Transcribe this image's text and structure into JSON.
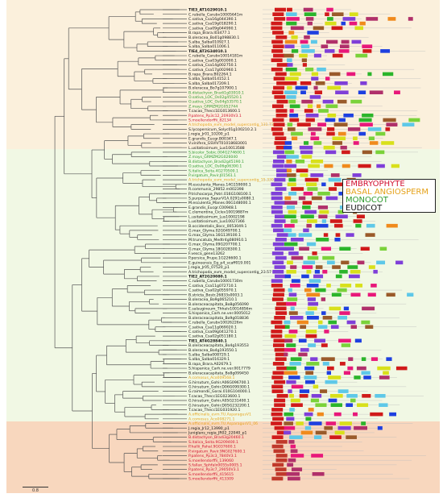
{
  "legend": [
    {
      "label": "EMBRYOPHYTE",
      "color": "#d11030"
    },
    {
      "label": "BASAL ANGIOSPERM",
      "color": "#e5a21a"
    },
    {
      "label": "MONOCOT",
      "color": "#2d9a2d"
    },
    {
      "label": "EUDICOT",
      "color": "#111111"
    }
  ],
  "scale_label": "0.8",
  "clades": [
    {
      "name": "upper",
      "color": "#fbf0dc"
    },
    {
      "name": "middle",
      "color": "#f1f8e4"
    },
    {
      "name": "lower",
      "color": "#f8d7be"
    }
  ],
  "domain_colors": [
    "#d01a1a",
    "#e8187a",
    "#7f3fd8",
    "#1e40e0",
    "#2bb52b",
    "#7ad23a",
    "#f08a1c",
    "#d8e01a",
    "#5ec8e8",
    "#b0306a",
    "#9a5a2a"
  ],
  "leaves": [
    {
      "label": "TIE3_AT1G29010.1",
      "color": "#111111",
      "bold": true
    },
    {
      "label": "C.rubella_Carubv10005641m",
      "color": "#111111"
    },
    {
      "label": "C.sativa_Csa16g044390.1",
      "color": "#111111"
    },
    {
      "label": "C.sativa_Csa19g018290.1",
      "color": "#111111"
    },
    {
      "label": "C.sativa_Csa09g044990.1",
      "color": "#111111"
    },
    {
      "label": "B.rapa_Brara.I03477.1",
      "color": "#111111"
    },
    {
      "label": "B.oleracea_Bo01g098830.1",
      "color": "#111111"
    },
    {
      "label": "S.alba_Salba010927.1",
      "color": "#111111"
    },
    {
      "label": "S.alba_Salba011006.1",
      "color": "#111111"
    },
    {
      "label": "TIE4_AT2G34010.1",
      "color": "#111111",
      "bold": true
    },
    {
      "label": "C.rubella_Carubv10014181m",
      "color": "#111111"
    },
    {
      "label": "C.sativa_Csa03g003000.1",
      "color": "#111111"
    },
    {
      "label": "C.sativa_Csa14g002750.1",
      "color": "#111111"
    },
    {
      "label": "C.sativa_Csa17g002960.1",
      "color": "#111111"
    },
    {
      "label": "B.rapa_Brara.B02264.1",
      "color": "#111111"
    },
    {
      "label": "S.alba_Salba014152.1",
      "color": "#111111"
    },
    {
      "label": "S.alba_Salba017209.1",
      "color": "#111111"
    },
    {
      "label": "B.oleracea_Bo7g107900.1",
      "color": "#111111"
    },
    {
      "label": "B.distachyon_Bradi1g03910.1",
      "color": "#2d9a2d"
    },
    {
      "label": "O.sativa_LOC_Os02g45520.1",
      "color": "#2d9a2d"
    },
    {
      "label": "O.sativa_LOC_Os04g53570.1",
      "color": "#2d9a2d"
    },
    {
      "label": "Z.mays_GRMZM2G052744",
      "color": "#2d9a2d"
    },
    {
      "label": "T.cacao_Thecc1EG013600.1",
      "color": "#111111"
    },
    {
      "label": "P.patens_Pp3c12_20930V3.1",
      "color": "#d11030"
    },
    {
      "label": "S.moellendorffii_82134",
      "color": "#d11030"
    },
    {
      "label": "A.trichopoda_evm_model_supercontig_131.73",
      "color": "#e5a21a"
    },
    {
      "label": "S.lycopersicum_Solyc01g100210.2.1",
      "color": "#111111"
    },
    {
      "label": "J.regia_Jr01_10200_p1",
      "color": "#111111"
    },
    {
      "label": "E.grandis_Eucgr.B00347.1",
      "color": "#111111"
    },
    {
      "label": "V.vinifera_GSVIVT01018683001",
      "color": "#111111"
    },
    {
      "label": "L.usitatissimum_Lus10013588",
      "color": "#111111"
    },
    {
      "label": "S.bicolor_Sobic.004G274600.1",
      "color": "#2d9a2d"
    },
    {
      "label": "Z.mays_GRMZM2G026040",
      "color": "#2d9a2d"
    },
    {
      "label": "B.distachyon_Bradi2g45190.1",
      "color": "#2d9a2d"
    },
    {
      "label": "O.sativa_LOC_Os06g06390.1",
      "color": "#2d9a2d"
    },
    {
      "label": "S.italica_Seita.4G270500.1",
      "color": "#2d9a2d"
    },
    {
      "label": "P.virgatum_Pavir.J01561.1",
      "color": "#2d9a2d"
    },
    {
      "label": "A.trichopoda_evm_model_supercontig_15.330_001",
      "color": "#e5a21a"
    },
    {
      "label": "M.esculenta_Manes.14G159000.1",
      "color": "#111111"
    },
    {
      "label": "R.communis_29852.m002398",
      "color": "#111111"
    },
    {
      "label": "P.trichocarpa_Potri.016G108100.1",
      "color": "#111111"
    },
    {
      "label": "S.purpurea_SapurV1A.0291s0080.1",
      "color": "#111111"
    },
    {
      "label": "M.esculenta_Manes.06G148000.1",
      "color": "#111111"
    },
    {
      "label": "E.grandis_Eucgr.C00948.1",
      "color": "#111111"
    },
    {
      "label": "C.clementina_Ciclev10019887m",
      "color": "#111111"
    },
    {
      "label": "L.usitatissimum_Lus10002198",
      "color": "#111111"
    },
    {
      "label": "L.usitatissimum_Lus10027366",
      "color": "#111111"
    },
    {
      "label": "B.occidentalis_Bocc_0053049.1",
      "color": "#111111"
    },
    {
      "label": "G.max_Glyma.02G049700.1",
      "color": "#111111"
    },
    {
      "label": "G.max_Glyma.16G139100.1",
      "color": "#111111"
    },
    {
      "label": "M.truncatula_Medtr4g080910.1",
      "color": "#111111"
    },
    {
      "label": "G.max_Glyma.09G207700.1",
      "color": "#111111"
    },
    {
      "label": "G.max_Glyma.18G028300.1",
      "color": "#111111"
    },
    {
      "label": "F.vesca_gene13262",
      "color": "#111111"
    },
    {
      "label": "P.persica_Prupe.1G226600.1",
      "color": "#111111"
    },
    {
      "label": "E.guineensis_Eg_p4_scaff019.001",
      "color": "#111111"
    },
    {
      "label": "J.regia_Jr05_07520_p1",
      "color": "#111111"
    },
    {
      "label": "A.trichopoda_evm_model_supercontig_23.57",
      "color": "#111111"
    },
    {
      "label": "TIE2_AT2G20080.1",
      "color": "#111111",
      "bold": true
    },
    {
      "label": "C.rubella_Carubv10001730m",
      "color": "#111111"
    },
    {
      "label": "C.sativa_Csa11g072710.1",
      "color": "#111111"
    },
    {
      "label": "C.sativa_Csa02g055970.1",
      "color": "#111111"
    },
    {
      "label": "B.stricta_Bostr.26833s0003.1",
      "color": "#111111"
    },
    {
      "label": "B.oleracea_Bo9g065210.1",
      "color": "#111111"
    },
    {
      "label": "B.oleraceacapitata_Bo8g056090",
      "color": "#111111"
    },
    {
      "label": "E.salsugineum_Thhalv10014856m",
      "color": "#111111"
    },
    {
      "label": "S.hispanica_Carh.ne.ver.0005012",
      "color": "#111111"
    },
    {
      "label": "B.oleraceacapitata_Bo9g018836",
      "color": "#111111"
    },
    {
      "label": "C.rubella_Carubv10026226m",
      "color": "#111111"
    },
    {
      "label": "C.sativa_Csa11g069020.1",
      "color": "#111111"
    },
    {
      "label": "C.sativa_Csa09g041270.1",
      "color": "#111111"
    },
    {
      "label": "C.sativa_Csa02g051180.1",
      "color": "#111111"
    },
    {
      "label": "TIE1_AT4G28840.1",
      "color": "#111111",
      "bold": true
    },
    {
      "label": "B.oleraceacapitata_Bo4g193553",
      "color": "#111111"
    },
    {
      "label": "B.oleracea_Bo4g193550.1",
      "color": "#111111"
    },
    {
      "label": "S.alba_Salba008729.1",
      "color": "#111111"
    },
    {
      "label": "S.alba_Salba016329.1",
      "color": "#111111"
    },
    {
      "label": "B.rapa_Brara.A02679.1",
      "color": "#111111"
    },
    {
      "label": "S.hispanica_Carh.ne.ver.0017779",
      "color": "#111111"
    },
    {
      "label": "B.oleraceacapitata_Bo8g099450",
      "color": "#111111"
    },
    {
      "label": "A.comosus_Aco009568.1",
      "color": "#e5a21a"
    },
    {
      "label": "G.hirsutum_Gohir.A06G096700.1",
      "color": "#111111"
    },
    {
      "label": "G.hirsutum_Gohir.D06G099300.1",
      "color": "#111111"
    },
    {
      "label": "G.raimondii_Gorai.010G104000.1",
      "color": "#111111"
    },
    {
      "label": "T.cacao_Thecc1EG023600.1",
      "color": "#111111"
    },
    {
      "label": "G.hirsutum_Gohir.A05G231400.1",
      "color": "#111111"
    },
    {
      "label": "G.hirsutum_Gohir.D05G232200.1",
      "color": "#111111"
    },
    {
      "label": "T.cacao_Thecc1EG031920.1",
      "color": "#111111"
    },
    {
      "label": "A.officinalis_evm.TU.AsparagusV1",
      "color": "#e5a21a"
    },
    {
      "label": "A.comosus_Aco008271.1",
      "color": "#e5a21a"
    },
    {
      "label": "A.officinalis_evm.TU.AsparagusV1_06",
      "color": "#e5a21a"
    },
    {
      "label": "J.regia_Jr12_13990_p1",
      "color": "#111111"
    },
    {
      "label": "Juniglans_regia_JR02_22040_p1",
      "color": "#111111"
    },
    {
      "label": "B.distachyon_Bradi3g20460.1",
      "color": "#d11030"
    },
    {
      "label": "S.italica_Seita.9G209400.1",
      "color": "#d11030"
    },
    {
      "label": "P.hallii_Pahal.9G037600.1",
      "color": "#d11030"
    },
    {
      "label": "P.virgatum_Pavir.9NG027600.1",
      "color": "#d11030"
    },
    {
      "label": "P.patens_Pp3c3_7840V3.1",
      "color": "#d11030"
    },
    {
      "label": "S.moellendorffii_139060",
      "color": "#d11030"
    },
    {
      "label": "S.fallax_Sphfalx0055s0005.1",
      "color": "#d11030"
    },
    {
      "label": "P.patens_Pp3c7_29050V3.1",
      "color": "#d11030"
    },
    {
      "label": "S.moellendorffii_415615",
      "color": "#d11030"
    },
    {
      "label": "S.moellendorffii_413309",
      "color": "#d11030"
    }
  ]
}
